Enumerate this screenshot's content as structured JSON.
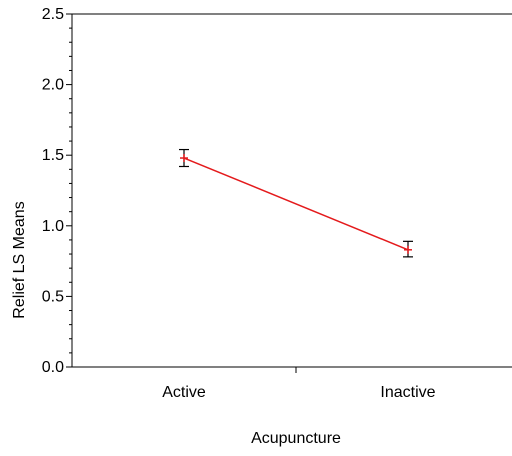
{
  "chart_data": {
    "type": "line",
    "xlabel": "Acupuncture",
    "ylabel": "Relief LS Means",
    "categories": [
      "Active",
      "Inactive"
    ],
    "ylim": [
      0,
      2.5
    ],
    "y_ticks": [
      "0.0",
      "0.5",
      "1.0",
      "1.5",
      "2.0",
      "2.5"
    ],
    "y_tick_values": [
      0,
      0.5,
      1.0,
      1.5,
      2.0,
      2.5
    ],
    "series": [
      {
        "values": [
          1.48,
          0.83
        ],
        "error_low": [
          1.42,
          0.78
        ],
        "error_high": [
          1.54,
          0.89
        ],
        "color": "#e41a1c"
      }
    ],
    "grid": false,
    "legend": "none"
  }
}
